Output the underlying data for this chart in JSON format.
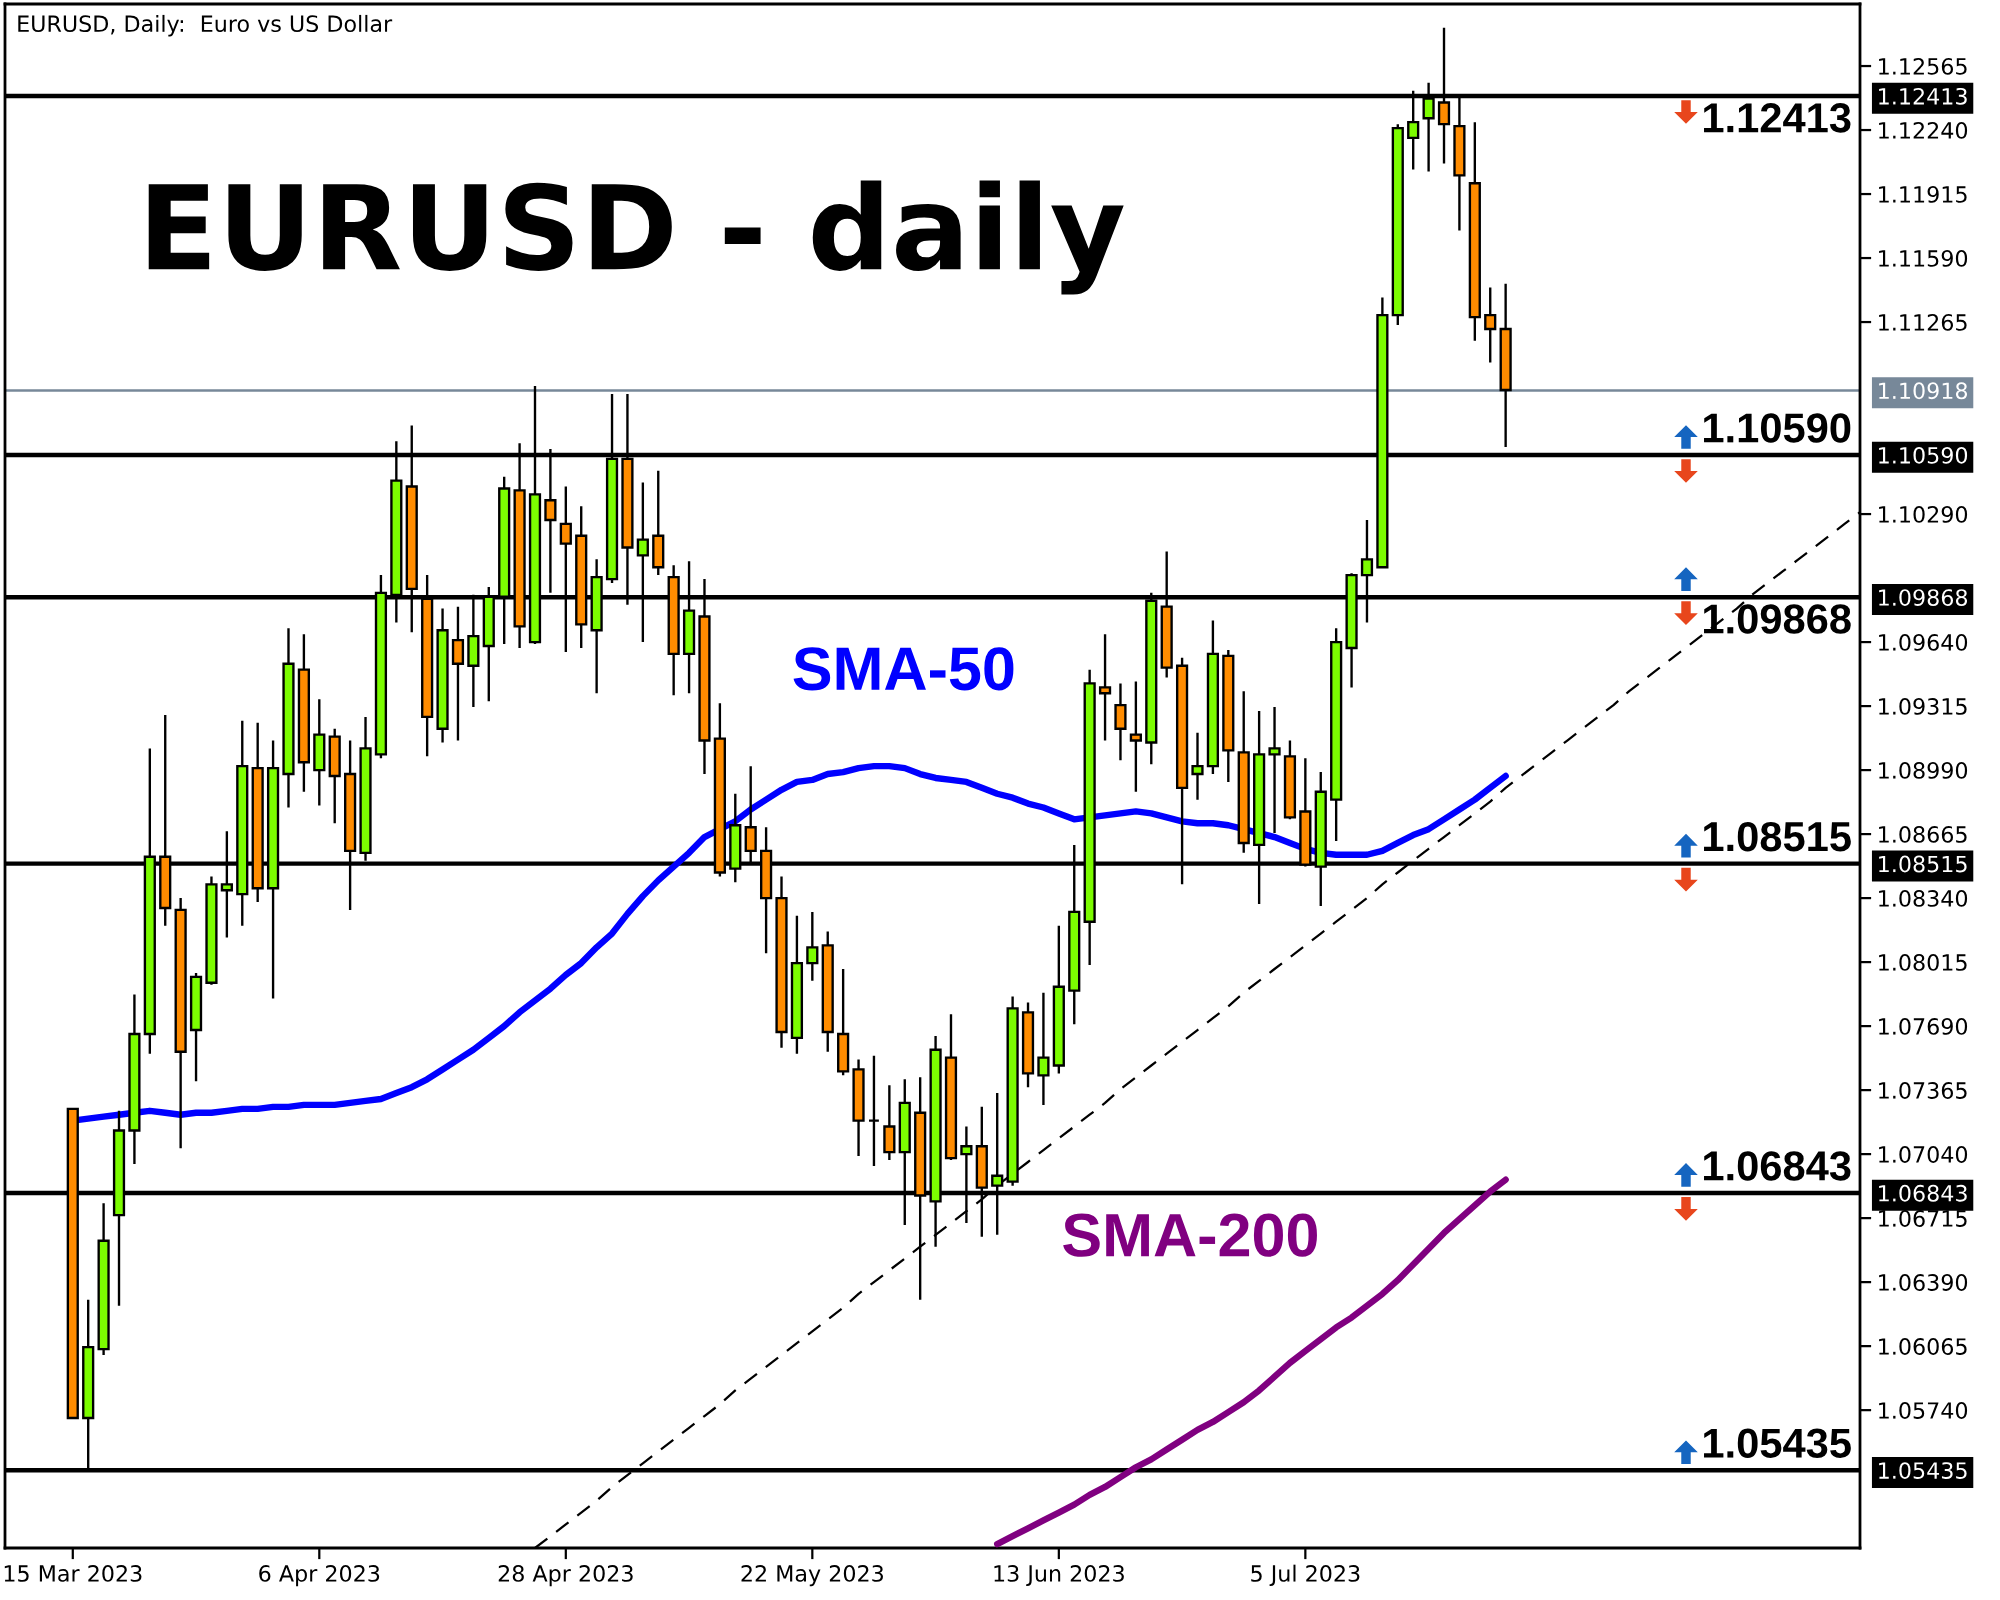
{
  "chart_data": {
    "type": "candlestick",
    "title": "EURUSD - daily",
    "subtitle": "EURUSD, Daily:  Euro vs US Dollar",
    "categories": [
      "15 Mar 2023",
      null,
      null,
      null,
      null,
      null,
      null,
      null,
      null,
      null,
      null,
      null,
      null,
      null,
      null,
      null,
      "6 Apr 2023",
      null,
      null,
      null,
      null,
      null,
      null,
      null,
      null,
      null,
      null,
      null,
      null,
      null,
      null,
      null,
      "28 Apr 2023",
      null,
      null,
      null,
      null,
      null,
      null,
      null,
      null,
      null,
      null,
      null,
      null,
      null,
      null,
      null,
      "22 May 2023",
      null,
      null,
      null,
      null,
      null,
      null,
      null,
      null,
      null,
      null,
      null,
      null,
      null,
      null,
      null,
      "13 Jun 2023",
      null,
      null,
      null,
      null,
      null,
      null,
      null,
      null,
      null,
      null,
      null,
      null,
      null,
      null,
      null,
      "5 Jul 2023",
      null,
      null,
      null,
      null,
      null,
      null,
      null,
      null,
      null,
      null,
      null,
      null,
      null,
      null,
      null,
      null,
      null,
      null,
      null,
      null,
      null,
      null,
      null,
      null,
      null,
      null,
      null,
      null,
      null,
      null,
      null,
      null,
      null,
      null,
      null,
      null
    ],
    "ohlc": [
      [
        1.0727,
        1.0727,
        1.057,
        1.057
      ],
      [
        1.057,
        1.063,
        1.0544,
        1.0606
      ],
      [
        1.0605,
        1.0679,
        1.0602,
        1.066
      ],
      [
        1.0673,
        1.0726,
        1.0627,
        1.0716
      ],
      [
        1.0716,
        1.0785,
        1.0699,
        1.0765
      ],
      [
        1.0765,
        1.091,
        1.0755,
        1.0855
      ],
      [
        1.0855,
        1.0927,
        1.082,
        1.0829
      ],
      [
        1.0828,
        1.0834,
        1.0707,
        1.0756
      ],
      [
        1.0767,
        1.0796,
        1.0741,
        1.0794
      ],
      [
        1.0791,
        1.0845,
        1.079,
        1.0841
      ],
      [
        1.0838,
        1.0868,
        1.0814,
        1.0841
      ],
      [
        1.0836,
        1.0924,
        1.082,
        1.0901
      ],
      [
        1.09,
        1.0923,
        1.0832,
        1.0839
      ],
      [
        1.0839,
        1.0914,
        1.0783,
        1.09
      ],
      [
        1.0897,
        1.0971,
        1.088,
        1.0953
      ],
      [
        1.095,
        1.0968,
        1.0888,
        1.0903
      ],
      [
        1.0899,
        1.0935,
        1.0881,
        1.0917
      ],
      [
        1.0916,
        1.092,
        1.0872,
        1.0896
      ],
      [
        1.0897,
        1.0914,
        1.0828,
        1.0858
      ],
      [
        1.0857,
        1.0926,
        1.0853,
        1.091
      ],
      [
        1.0907,
        1.0998,
        1.0905,
        1.0989
      ],
      [
        1.0988,
        1.1066,
        1.0974,
        1.1046
      ],
      [
        1.1043,
        1.1074,
        1.0969,
        1.0991
      ],
      [
        1.0986,
        1.0998,
        1.0906,
        1.0926
      ],
      [
        1.092,
        1.0981,
        1.0913,
        1.097
      ],
      [
        1.0965,
        1.0982,
        1.0914,
        1.0953
      ],
      [
        1.0952,
        1.0988,
        1.0931,
        1.0967
      ],
      [
        1.0962,
        1.0992,
        1.0934,
        1.0987
      ],
      [
        1.0987,
        1.1048,
        1.0963,
        1.1042
      ],
      [
        1.1041,
        1.1065,
        1.0961,
        1.0972
      ],
      [
        1.0964,
        1.1094,
        1.0963,
        1.1039
      ],
      [
        1.1036,
        1.1062,
        1.0989,
        1.1026
      ],
      [
        1.1024,
        1.1043,
        1.0959,
        1.1014
      ],
      [
        1.1018,
        1.1033,
        1.0961,
        1.0973
      ],
      [
        1.097,
        1.1006,
        1.0938,
        1.0997
      ],
      [
        1.0996,
        1.109,
        1.0994,
        1.1057
      ],
      [
        1.1057,
        1.109,
        1.0983,
        1.1012
      ],
      [
        1.1008,
        1.1045,
        1.0964,
        1.1016
      ],
      [
        1.1018,
        1.1051,
        1.0998,
        1.1002
      ],
      [
        1.0997,
        1.1003,
        1.0937,
        1.0958
      ],
      [
        1.0958,
        1.1005,
        1.0938,
        1.098
      ],
      [
        1.0977,
        1.0996,
        1.0897,
        1.0914
      ],
      [
        1.0915,
        1.0933,
        1.0845,
        1.0847
      ],
      [
        1.0849,
        1.0887,
        1.0842,
        1.0871
      ],
      [
        1.087,
        1.0901,
        1.0852,
        1.0858
      ],
      [
        1.0858,
        1.087,
        1.0806,
        1.0834
      ],
      [
        1.0834,
        1.0845,
        1.0758,
        1.0766
      ],
      [
        1.0763,
        1.0825,
        1.0755,
        1.0801
      ],
      [
        1.0801,
        1.0827,
        1.0792,
        1.0809
      ],
      [
        1.081,
        1.0817,
        1.0756,
        1.0766
      ],
      [
        1.0765,
        1.0798,
        1.0744,
        1.0746
      ],
      [
        1.0747,
        1.0752,
        1.0703,
        1.0721
      ],
      [
        1.0721,
        1.0754,
        1.0698,
        1.0721
      ],
      [
        1.0718,
        1.0739,
        1.0701,
        1.0705
      ],
      [
        1.0705,
        1.0742,
        1.0668,
        1.073
      ],
      [
        1.0725,
        1.0743,
        1.063,
        1.0683
      ],
      [
        1.068,
        1.0764,
        1.0657,
        1.0757
      ],
      [
        1.0753,
        1.0775,
        1.0701,
        1.0702
      ],
      [
        1.0704,
        1.0718,
        1.0669,
        1.0708
      ],
      [
        1.0708,
        1.0728,
        1.0662,
        1.0687
      ],
      [
        1.0688,
        1.0735,
        1.0663,
        1.0693
      ],
      [
        1.069,
        1.0784,
        1.0688,
        1.0778
      ],
      [
        1.0776,
        1.0781,
        1.0738,
        1.0745
      ],
      [
        1.0744,
        1.0786,
        1.0729,
        1.0753
      ],
      [
        1.0749,
        1.082,
        1.0745,
        1.0789
      ],
      [
        1.0787,
        1.0861,
        1.077,
        1.0827
      ],
      [
        1.0822,
        1.095,
        1.08,
        1.0943
      ],
      [
        1.0941,
        1.0968,
        1.0914,
        1.0938
      ],
      [
        1.0932,
        1.0943,
        1.0904,
        1.092
      ],
      [
        1.0917,
        1.0944,
        1.0888,
        1.0914
      ],
      [
        1.0913,
        1.0989,
        1.0902,
        1.0985
      ],
      [
        1.0982,
        1.101,
        1.0946,
        1.0951
      ],
      [
        1.0952,
        1.0956,
        1.0841,
        1.089
      ],
      [
        1.0897,
        1.0918,
        1.0884,
        1.0901
      ],
      [
        1.0901,
        1.0975,
        1.0897,
        1.0958
      ],
      [
        1.0957,
        1.096,
        1.0893,
        1.0909
      ],
      [
        1.0908,
        1.0939,
        1.0857,
        1.0862
      ],
      [
        1.0861,
        1.0929,
        1.0831,
        1.0907
      ],
      [
        1.0907,
        1.0931,
        1.0867,
        1.091
      ],
      [
        1.0906,
        1.0914,
        1.0874,
        1.0875
      ],
      [
        1.0878,
        1.0905,
        1.085,
        1.0851
      ],
      [
        1.085,
        1.0898,
        1.083,
        1.0888
      ],
      [
        1.0884,
        1.0971,
        1.0863,
        1.0964
      ],
      [
        1.0961,
        1.0999,
        1.0941,
        1.0998
      ],
      [
        1.0998,
        1.1026,
        1.0974,
        1.1006
      ],
      [
        1.1002,
        1.1139,
        1.1002,
        1.113
      ],
      [
        1.113,
        1.1227,
        1.1125,
        1.1225
      ],
      [
        1.122,
        1.1244,
        1.1204,
        1.1228
      ],
      [
        1.123,
        1.1248,
        1.1203,
        1.124
      ],
      [
        1.1238,
        1.1276,
        1.1207,
        1.1227
      ],
      [
        1.1226,
        1.1241,
        1.1173,
        1.1201
      ],
      [
        1.1197,
        1.1228,
        1.1117,
        1.1129
      ],
      [
        1.113,
        1.1144,
        1.1106,
        1.1123
      ],
      [
        1.1123,
        1.1146,
        1.1063,
        1.1092
      ],
      null,
      null,
      null,
      null,
      null,
      null,
      null,
      null,
      null,
      null,
      null,
      null,
      null,
      null,
      null,
      null,
      null,
      null,
      null,
      null,
      null,
      null,
      null
    ],
    "colors": [
      "#ff8c00",
      "#7cfc00",
      "#7cfc00",
      "#7cfc00",
      "#7cfc00",
      "#7cfc00",
      "#ff8c00",
      "#ff8c00",
      "#7cfc00",
      "#7cfc00",
      "#7cfc00",
      "#7cfc00",
      "#ff8c00",
      "#7cfc00",
      "#7cfc00",
      "#ff8c00",
      "#7cfc00",
      "#ff8c00",
      "#ff8c00",
      "#7cfc00",
      "#7cfc00",
      "#7cfc00",
      "#ff8c00",
      "#ff8c00",
      "#7cfc00",
      "#ff8c00",
      "#7cfc00",
      "#7cfc00",
      "#7cfc00",
      "#ff8c00",
      "#7cfc00",
      "#ff8c00",
      "#ff8c00",
      "#ff8c00",
      "#7cfc00",
      "#7cfc00",
      "#ff8c00",
      "#7cfc00",
      "#ff8c00",
      "#ff8c00",
      "#7cfc00",
      "#ff8c00",
      "#ff8c00",
      "#7cfc00",
      "#ff8c00",
      "#ff8c00",
      "#ff8c00",
      "#7cfc00",
      "#7cfc00",
      "#ff8c00",
      "#ff8c00",
      "#ff8c00",
      "#000000",
      "#ff8c00",
      "#7cfc00",
      "#ff8c00",
      "#7cfc00",
      "#ff8c00",
      "#7cfc00",
      "#ff8c00",
      "#7cfc00",
      "#7cfc00",
      "#ff8c00",
      "#7cfc00",
      "#7cfc00",
      "#7cfc00",
      "#7cfc00",
      "#ff8c00",
      "#ff8c00",
      "#ff8c00",
      "#7cfc00",
      "#ff8c00",
      "#ff8c00",
      "#7cfc00",
      "#7cfc00",
      "#ff8c00",
      "#ff8c00",
      "#7cfc00",
      "#7cfc00",
      "#ff8c00",
      "#ff8c00",
      "#7cfc00",
      "#7cfc00",
      "#7cfc00",
      "#7cfc00",
      "#7cfc00",
      "#7cfc00",
      "#7cfc00",
      "#7cfc00",
      "#ff8c00",
      "#ff8c00",
      "#ff8c00",
      "#ff8c00",
      "#ff8c00",
      null,
      null,
      null,
      null,
      null,
      null,
      null,
      null,
      null,
      null,
      null,
      null,
      null,
      null,
      null,
      null,
      null,
      null,
      null,
      null,
      null,
      null,
      null
    ],
    "series": [
      {
        "name": "SMA-50",
        "type": "line",
        "color": "#0000ff",
        "values": [
          1.0721,
          1.0722,
          1.0723,
          1.0724,
          1.0725,
          1.0726,
          1.0725,
          1.0724,
          1.0725,
          1.0725,
          1.0726,
          1.0727,
          1.0727,
          1.0728,
          1.0728,
          1.0729,
          1.0729,
          1.0729,
          1.073,
          1.0731,
          1.0732,
          1.0735,
          1.0738,
          1.0742,
          1.0747,
          1.0752,
          1.0757,
          1.0763,
          1.0769,
          1.0776,
          1.0782,
          1.0788,
          1.0795,
          1.0801,
          1.0809,
          1.0816,
          1.0826,
          1.0835,
          1.0843,
          1.085,
          1.0857,
          1.0865,
          1.0869,
          1.0873,
          1.0879,
          1.0884,
          1.0889,
          1.0893,
          1.0894,
          1.0897,
          1.0898,
          1.09,
          1.0901,
          1.0901,
          1.09,
          1.0897,
          1.0895,
          1.0894,
          1.0893,
          1.089,
          1.0887,
          1.0885,
          1.0882,
          1.088,
          1.0877,
          1.0874,
          1.0875,
          1.0876,
          1.0877,
          1.0878,
          1.0877,
          1.0875,
          1.0873,
          1.0872,
          1.0872,
          1.0871,
          1.0869,
          1.0867,
          1.0865,
          1.0862,
          1.0859,
          1.0857,
          1.0856,
          1.0856,
          1.0856,
          1.0858,
          1.0862,
          1.0866,
          1.0869,
          1.0874,
          1.0879,
          1.0884,
          1.089,
          1.0896,
          null,
          null,
          null,
          null,
          null,
          null,
          null,
          null,
          null,
          null,
          null,
          null,
          null,
          null,
          null,
          null,
          null,
          null,
          null,
          null,
          null,
          null,
          null
        ]
      },
      {
        "name": "SMA-200",
        "type": "line",
        "color": "#800080",
        "values": [
          null,
          null,
          null,
          null,
          null,
          null,
          null,
          null,
          null,
          null,
          null,
          null,
          null,
          null,
          null,
          null,
          null,
          null,
          null,
          null,
          null,
          null,
          null,
          null,
          null,
          null,
          null,
          null,
          null,
          null,
          null,
          null,
          null,
          null,
          null,
          null,
          null,
          null,
          null,
          null,
          null,
          null,
          null,
          null,
          null,
          null,
          null,
          null,
          null,
          null,
          null,
          null,
          null,
          null,
          null,
          null,
          null,
          null,
          null,
          null,
          1.0506,
          1.051,
          1.0514,
          1.0518,
          1.0522,
          1.0526,
          1.0531,
          1.0535,
          1.054,
          1.0545,
          1.0549,
          1.0554,
          1.0559,
          1.0564,
          1.0568,
          1.0573,
          1.0578,
          1.0584,
          1.0591,
          1.0598,
          1.0604,
          1.061,
          1.0616,
          1.0621,
          1.0627,
          1.0633,
          1.064,
          1.0648,
          1.0656,
          1.0664,
          1.0671,
          1.0678,
          1.0685,
          1.0691,
          null,
          null,
          null,
          null,
          null,
          null,
          null,
          null,
          null,
          null,
          null,
          null,
          null,
          null,
          null,
          null,
          null,
          null,
          null,
          null,
          null,
          null,
          null
        ]
      },
      {
        "type": "line",
        "color": "#000000",
        "line_style": "dashed",
        "values": [
          null,
          null,
          null,
          null,
          null,
          null,
          null,
          null,
          null,
          null,
          null,
          null,
          null,
          null,
          null,
          null,
          null,
          null,
          null,
          null,
          null,
          null,
          null,
          null,
          null,
          null,
          null,
          null,
          null,
          null,
          1.0504,
          1.051,
          1.0516,
          1.0522,
          1.0528,
          1.0535,
          1.0541,
          1.0547,
          1.0553,
          1.0559,
          1.0565,
          1.0571,
          1.0577,
          1.0584,
          1.059,
          1.0596,
          1.0602,
          1.0608,
          1.0614,
          1.062,
          1.0626,
          1.0633,
          1.0639,
          1.0645,
          1.0651,
          1.0657,
          1.0663,
          1.0669,
          1.0675,
          1.0681,
          1.0688,
          1.0694,
          1.07,
          1.0706,
          1.0712,
          1.0718,
          1.0724,
          1.073,
          1.0737,
          1.0743,
          1.0749,
          1.0755,
          1.0761,
          1.0767,
          1.0773,
          1.0779,
          1.0786,
          1.0792,
          1.0798,
          1.0804,
          1.081,
          1.0816,
          1.0822,
          1.0828,
          1.0834,
          1.0841,
          1.0847,
          1.0853,
          1.0859,
          1.0865,
          1.0871,
          1.0877,
          1.0883,
          1.089,
          1.0896,
          1.0902,
          1.0908,
          1.0914,
          1.092,
          1.0926,
          1.0932,
          1.0939,
          1.0945,
          1.0951,
          1.0957,
          1.0963,
          1.0969,
          1.0975,
          1.0981,
          1.0988,
          1.0994,
          1.1,
          1.1006,
          1.1012,
          1.1018,
          1.1024,
          1.103
        ]
      }
    ],
    "ylim": [
      1.0504,
      1.1288
    ],
    "yticks": [
      1.05435,
      {
        "value": 1.0574,
        "label": "1.05740"
      },
      1.06065,
      {
        "value": 1.0639,
        "label": "1.06390"
      },
      1.06715,
      1.06843,
      {
        "value": 1.0704,
        "label": "1.07040"
      },
      1.07365,
      {
        "value": 1.0769,
        "label": "1.07690"
      },
      1.08015,
      {
        "value": 1.0834,
        "label": "1.08340"
      },
      1.08515,
      1.08665,
      {
        "value": 1.0899,
        "label": "1.08990"
      },
      1.09315,
      {
        "value": 1.0964,
        "label": "1.09640"
      },
      1.09868,
      {
        "value": 1.1029,
        "label": "1.10290"
      },
      {
        "value": 1.1059,
        "label": "1.10590"
      },
      1.10918,
      1.11265,
      {
        "value": 1.1159,
        "label": "1.11590"
      },
      1.11915,
      {
        "value": 1.1224,
        "label": "1.12240"
      },
      1.12413,
      1.12565
    ],
    "ref_lines": [
      {
        "axis": "y",
        "value": 1.12413,
        "label": "1.12413",
        "color": "#000000"
      },
      {
        "axis": "y",
        "value": 1.1059,
        "label": "1.10590",
        "color": "#000000"
      },
      {
        "axis": "y",
        "value": 1.09868,
        "label": "1.09868",
        "color": "#000000"
      },
      {
        "axis": "y",
        "value": 1.08515,
        "label": "1.08515",
        "color": "#000000"
      },
      {
        "axis": "y",
        "value": 1.06843,
        "label": "1.06843",
        "color": "#000000"
      },
      {
        "axis": "y",
        "value": 1.05435,
        "label": "1.05435",
        "color": "#000000"
      },
      {
        "axis": "y",
        "value": 1.10918,
        "color": "#778899"
      }
    ],
    "grid": false,
    "legend": false
  }
}
